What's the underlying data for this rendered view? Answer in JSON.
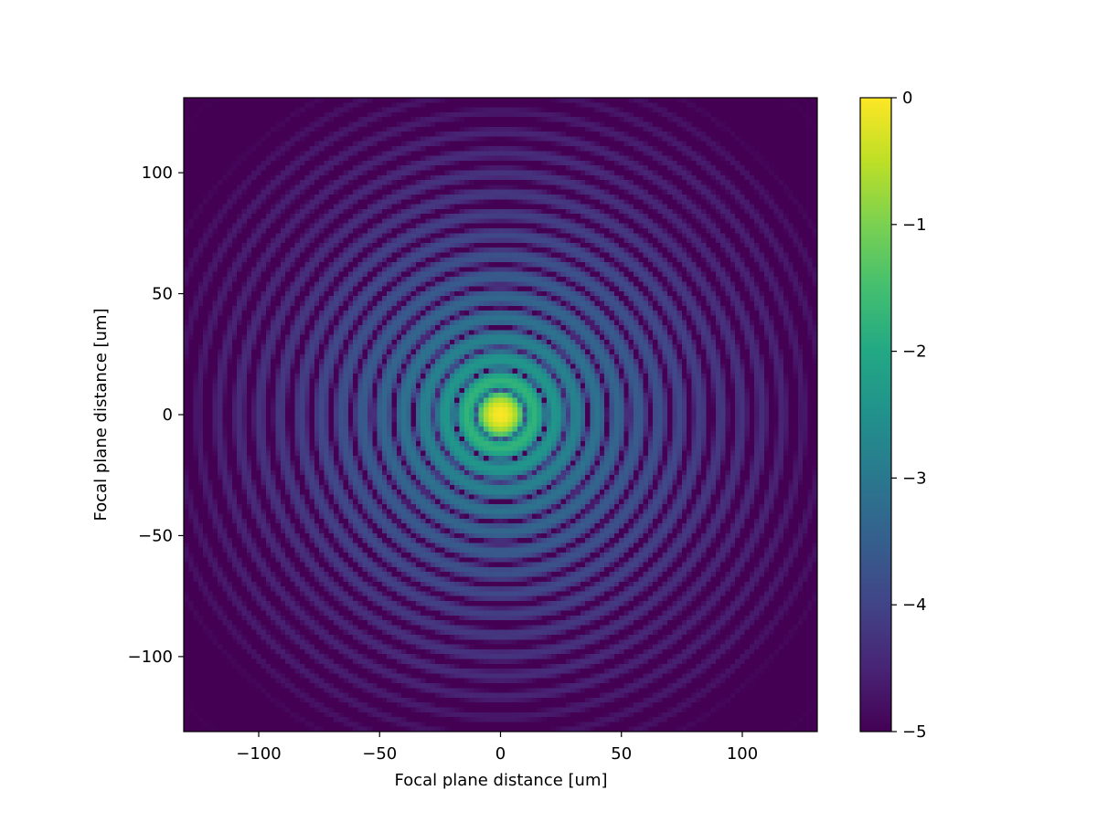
{
  "chart_data": {
    "type": "heatmap",
    "title": "",
    "xlabel": "Focal plane distance [um]",
    "ylabel": "Focal plane distance [um]",
    "xlim": [
      -131,
      131
    ],
    "ylim": [
      -131,
      131
    ],
    "x_ticks": [
      -100,
      -50,
      0,
      50,
      100
    ],
    "y_ticks": [
      -100,
      -50,
      0,
      50,
      100
    ],
    "x_tick_labels": [
      "−100",
      "−50",
      "0",
      "50",
      "100"
    ],
    "y_tick_labels": [
      "−100",
      "−50",
      "0",
      "50",
      "100"
    ],
    "colormap": "viridis",
    "colorbar": {
      "range": [
        -5,
        0
      ],
      "ticks": [
        0,
        -1,
        -2,
        -3,
        -4,
        -5
      ],
      "tick_labels": [
        "0",
        "−1",
        "−2",
        "−3",
        "−4",
        "−5"
      ]
    },
    "description_values": {
      "peak_value": 0,
      "floor_value": -5,
      "center": [
        0,
        0
      ],
      "pattern": "log10 intensity point-spread function with concentric diffraction rings"
    }
  }
}
